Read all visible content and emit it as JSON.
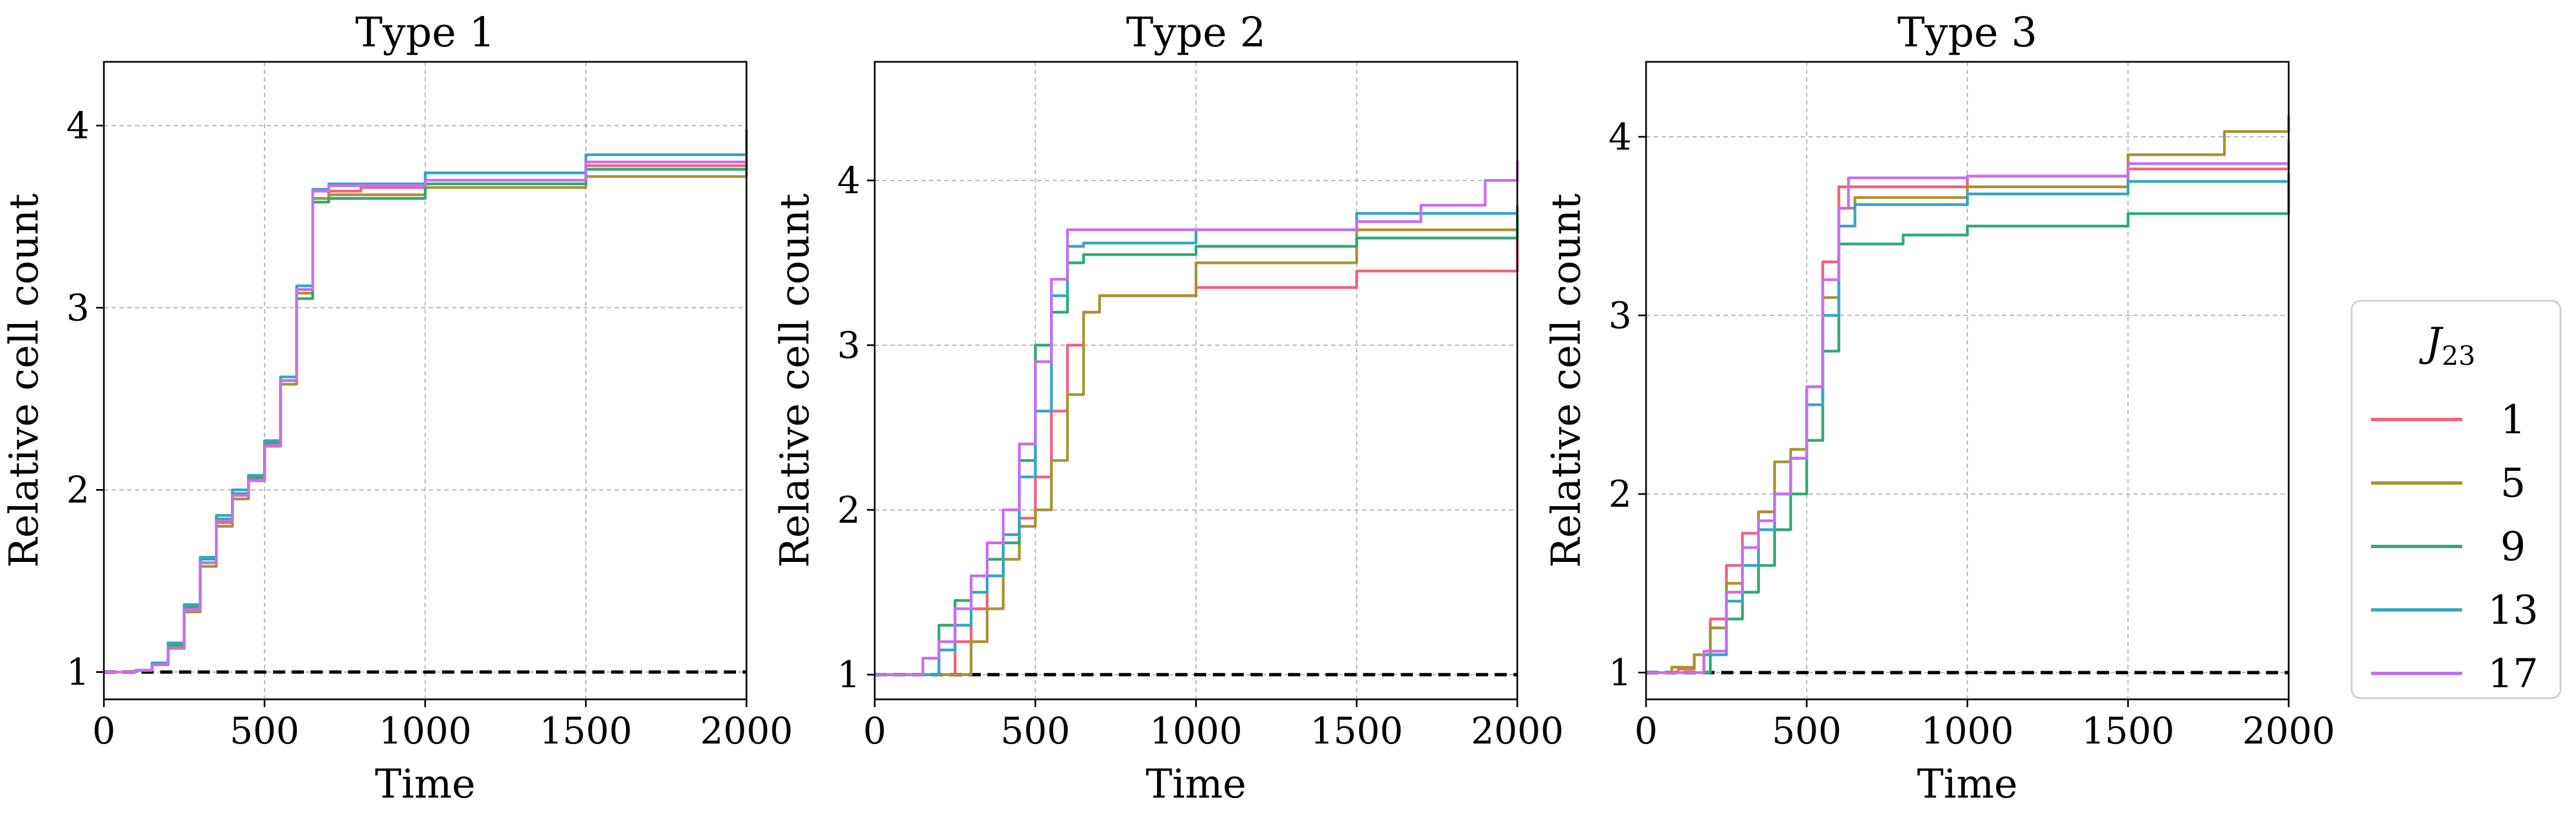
{
  "chart_data": [
    {
      "type": "line",
      "title": "Type 1",
      "xlabel": "Time",
      "ylabel": "Relative cell count",
      "xlim": [
        0,
        2000
      ],
      "ylim": [
        0.85,
        4.35
      ],
      "xticks": [
        0,
        500,
        1000,
        1500,
        2000
      ],
      "yticks": [
        1,
        2,
        3,
        4
      ],
      "grid": true,
      "reference_line": 1,
      "series": [
        {
          "name": "1",
          "color": "#f2627b",
          "points": [
            [
              0,
              1.0
            ],
            [
              100,
              1.01
            ],
            [
              150,
              1.05
            ],
            [
              200,
              1.15
            ],
            [
              250,
              1.35
            ],
            [
              300,
              1.6
            ],
            [
              350,
              1.82
            ],
            [
              400,
              1.97
            ],
            [
              450,
              2.06
            ],
            [
              500,
              2.25
            ],
            [
              550,
              2.6
            ],
            [
              600,
              3.1
            ],
            [
              650,
              3.6
            ],
            [
              700,
              3.64
            ],
            [
              800,
              3.66
            ],
            [
              1000,
              3.7
            ],
            [
              1500,
              3.78
            ],
            [
              2000,
              3.92
            ]
          ]
        },
        {
          "name": "5",
          "color": "#a89332",
          "points": [
            [
              0,
              1.0
            ],
            [
              100,
              1.01
            ],
            [
              150,
              1.04
            ],
            [
              200,
              1.14
            ],
            [
              250,
              1.33
            ],
            [
              300,
              1.58
            ],
            [
              350,
              1.8
            ],
            [
              400,
              1.95
            ],
            [
              450,
              2.05
            ],
            [
              500,
              2.24
            ],
            [
              550,
              2.58
            ],
            [
              600,
              3.08
            ],
            [
              650,
              3.6
            ],
            [
              700,
              3.62
            ],
            [
              1000,
              3.66
            ],
            [
              1500,
              3.72
            ],
            [
              2000,
              3.83
            ]
          ]
        },
        {
          "name": "9",
          "color": "#2eab72",
          "points": [
            [
              0,
              1.0
            ],
            [
              100,
              1.01
            ],
            [
              150,
              1.05
            ],
            [
              200,
              1.15
            ],
            [
              250,
              1.36
            ],
            [
              300,
              1.62
            ],
            [
              350,
              1.84
            ],
            [
              400,
              1.98
            ],
            [
              450,
              2.07
            ],
            [
              500,
              2.26
            ],
            [
              550,
              2.6
            ],
            [
              600,
              3.05
            ],
            [
              650,
              3.58
            ],
            [
              700,
              3.6
            ],
            [
              1000,
              3.68
            ],
            [
              1500,
              3.76
            ],
            [
              2000,
              3.86
            ]
          ]
        },
        {
          "name": "13",
          "color": "#34a6c6",
          "points": [
            [
              0,
              1.0
            ],
            [
              100,
              1.01
            ],
            [
              150,
              1.05
            ],
            [
              200,
              1.16
            ],
            [
              250,
              1.37
            ],
            [
              300,
              1.63
            ],
            [
              350,
              1.86
            ],
            [
              400,
              2.0
            ],
            [
              450,
              2.08
            ],
            [
              500,
              2.27
            ],
            [
              550,
              2.62
            ],
            [
              600,
              3.12
            ],
            [
              650,
              3.65
            ],
            [
              700,
              3.68
            ],
            [
              1000,
              3.74
            ],
            [
              1500,
              3.84
            ],
            [
              2000,
              3.98
            ]
          ]
        },
        {
          "name": "17",
          "color": "#c76ff0",
          "points": [
            [
              0,
              1.0
            ],
            [
              100,
              1.01
            ],
            [
              150,
              1.04
            ],
            [
              200,
              1.13
            ],
            [
              250,
              1.34
            ],
            [
              300,
              1.6
            ],
            [
              350,
              1.83
            ],
            [
              400,
              1.97
            ],
            [
              450,
              2.05
            ],
            [
              500,
              2.24
            ],
            [
              550,
              2.6
            ],
            [
              600,
              3.1
            ],
            [
              650,
              3.64
            ],
            [
              700,
              3.67
            ],
            [
              1000,
              3.7
            ],
            [
              1500,
              3.8
            ],
            [
              2000,
              3.88
            ]
          ]
        }
      ]
    },
    {
      "type": "line",
      "title": "Type 2",
      "xlabel": "Time",
      "ylabel": "Relative cell count",
      "xlim": [
        0,
        2000
      ],
      "ylim": [
        0.85,
        4.72
      ],
      "xticks": [
        0,
        500,
        1000,
        1500,
        2000
      ],
      "yticks": [
        1,
        2,
        3,
        4
      ],
      "grid": true,
      "reference_line": 1,
      "series": [
        {
          "name": "1",
          "color": "#f2627b",
          "points": [
            [
              0,
              1.0
            ],
            [
              200,
              1.0
            ],
            [
              250,
              1.2
            ],
            [
              300,
              1.4
            ],
            [
              350,
              1.6
            ],
            [
              400,
              1.8
            ],
            [
              450,
              1.95
            ],
            [
              500,
              2.2
            ],
            [
              550,
              2.6
            ],
            [
              600,
              3.0
            ],
            [
              650,
              3.2
            ],
            [
              700,
              3.3
            ],
            [
              1000,
              3.35
            ],
            [
              1500,
              3.45
            ],
            [
              2000,
              3.72
            ]
          ]
        },
        {
          "name": "5",
          "color": "#a89332",
          "points": [
            [
              0,
              1.0
            ],
            [
              230,
              1.0
            ],
            [
              300,
              1.2
            ],
            [
              350,
              1.4
            ],
            [
              400,
              1.7
            ],
            [
              450,
              1.9
            ],
            [
              500,
              2.0
            ],
            [
              550,
              2.3
            ],
            [
              600,
              2.7
            ],
            [
              650,
              3.2
            ],
            [
              700,
              3.3
            ],
            [
              1000,
              3.5
            ],
            [
              1500,
              3.7
            ],
            [
              2000,
              3.85
            ]
          ]
        },
        {
          "name": "9",
          "color": "#2eab72",
          "points": [
            [
              0,
              1.0
            ],
            [
              150,
              1.0
            ],
            [
              200,
              1.3
            ],
            [
              250,
              1.45
            ],
            [
              300,
              1.5
            ],
            [
              350,
              1.7
            ],
            [
              400,
              1.8
            ],
            [
              450,
              2.3
            ],
            [
              500,
              3.0
            ],
            [
              550,
              3.2
            ],
            [
              600,
              3.5
            ],
            [
              650,
              3.55
            ],
            [
              1000,
              3.6
            ],
            [
              1500,
              3.65
            ],
            [
              2000,
              3.78
            ]
          ]
        },
        {
          "name": "13",
          "color": "#34a6c6",
          "points": [
            [
              0,
              1.0
            ],
            [
              150,
              1.0
            ],
            [
              200,
              1.15
            ],
            [
              250,
              1.3
            ],
            [
              300,
              1.5
            ],
            [
              350,
              1.6
            ],
            [
              400,
              1.85
            ],
            [
              450,
              2.2
            ],
            [
              500,
              2.6
            ],
            [
              550,
              3.3
            ],
            [
              600,
              3.6
            ],
            [
              650,
              3.62
            ],
            [
              1000,
              3.7
            ],
            [
              1500,
              3.8
            ],
            [
              2000,
              3.82
            ]
          ]
        },
        {
          "name": "17",
          "color": "#c76ff0",
          "points": [
            [
              0,
              1.0
            ],
            [
              100,
              1.0
            ],
            [
              150,
              1.1
            ],
            [
              200,
              1.2
            ],
            [
              250,
              1.4
            ],
            [
              300,
              1.6
            ],
            [
              350,
              1.8
            ],
            [
              400,
              2.0
            ],
            [
              450,
              2.4
            ],
            [
              500,
              2.9
            ],
            [
              550,
              3.4
            ],
            [
              600,
              3.7
            ],
            [
              1000,
              3.7
            ],
            [
              1500,
              3.75
            ],
            [
              1700,
              3.85
            ],
            [
              1900,
              4.0
            ],
            [
              2000,
              4.12
            ]
          ]
        }
      ]
    },
    {
      "type": "line",
      "title": "Type 3",
      "xlabel": "Time",
      "ylabel": "Relative cell count",
      "xlim": [
        0,
        2000
      ],
      "ylim": [
        0.85,
        4.42
      ],
      "xticks": [
        0,
        500,
        1000,
        1500,
        2000
      ],
      "yticks": [
        1,
        2,
        3,
        4
      ],
      "grid": true,
      "reference_line": 1,
      "series": [
        {
          "name": "1",
          "color": "#f2627b",
          "points": [
            [
              0,
              1.0
            ],
            [
              100,
              1.02
            ],
            [
              150,
              1.1
            ],
            [
              200,
              1.3
            ],
            [
              250,
              1.6
            ],
            [
              300,
              1.78
            ],
            [
              350,
              1.9
            ],
            [
              400,
              2.0
            ],
            [
              450,
              2.2
            ],
            [
              500,
              2.6
            ],
            [
              550,
              3.3
            ],
            [
              600,
              3.72
            ],
            [
              1000,
              3.78
            ],
            [
              1500,
              3.82
            ],
            [
              2000,
              3.88
            ]
          ]
        },
        {
          "name": "5",
          "color": "#a89332",
          "points": [
            [
              0,
              1.0
            ],
            [
              80,
              1.03
            ],
            [
              150,
              1.1
            ],
            [
              200,
              1.25
            ],
            [
              250,
              1.5
            ],
            [
              300,
              1.7
            ],
            [
              350,
              1.9
            ],
            [
              400,
              2.18
            ],
            [
              450,
              2.25
            ],
            [
              500,
              2.6
            ],
            [
              550,
              3.1
            ],
            [
              600,
              3.6
            ],
            [
              650,
              3.66
            ],
            [
              1000,
              3.72
            ],
            [
              1500,
              3.9
            ],
            [
              1800,
              4.03
            ],
            [
              2000,
              4.12
            ]
          ]
        },
        {
          "name": "9",
          "color": "#2eab72",
          "points": [
            [
              0,
              1.0
            ],
            [
              150,
              1.0
            ],
            [
              200,
              1.1
            ],
            [
              250,
              1.3
            ],
            [
              300,
              1.45
            ],
            [
              350,
              1.6
            ],
            [
              400,
              1.8
            ],
            [
              450,
              2.0
            ],
            [
              500,
              2.3
            ],
            [
              550,
              2.8
            ],
            [
              600,
              3.4
            ],
            [
              800,
              3.45
            ],
            [
              1000,
              3.5
            ],
            [
              1500,
              3.57
            ],
            [
              2000,
              3.75
            ]
          ]
        },
        {
          "name": "13",
          "color": "#34a6c6",
          "points": [
            [
              0,
              1.0
            ],
            [
              120,
              1.0
            ],
            [
              180,
              1.1
            ],
            [
              250,
              1.4
            ],
            [
              300,
              1.6
            ],
            [
              350,
              1.8
            ],
            [
              400,
              2.0
            ],
            [
              450,
              2.2
            ],
            [
              500,
              2.5
            ],
            [
              550,
              3.0
            ],
            [
              600,
              3.5
            ],
            [
              650,
              3.62
            ],
            [
              1000,
              3.68
            ],
            [
              1500,
              3.75
            ],
            [
              2000,
              3.8
            ]
          ]
        },
        {
          "name": "17",
          "color": "#c76ff0",
          "points": [
            [
              0,
              1.0
            ],
            [
              120,
              1.0
            ],
            [
              180,
              1.12
            ],
            [
              250,
              1.45
            ],
            [
              300,
              1.7
            ],
            [
              350,
              1.85
            ],
            [
              400,
              2.0
            ],
            [
              450,
              2.2
            ],
            [
              500,
              2.6
            ],
            [
              550,
              3.2
            ],
            [
              600,
              3.6
            ],
            [
              630,
              3.77
            ],
            [
              1000,
              3.78
            ],
            [
              1500,
              3.85
            ],
            [
              2000,
              3.98
            ]
          ]
        }
      ]
    }
  ],
  "legend": {
    "title": "J",
    "title_subscript": "23",
    "placement": "right",
    "items": [
      {
        "label": "1",
        "color": "#f2627b"
      },
      {
        "label": "5",
        "color": "#a89332"
      },
      {
        "label": "9",
        "color": "#2eab72"
      },
      {
        "label": "13",
        "color": "#34a6c6"
      },
      {
        "label": "17",
        "color": "#c76ff0"
      }
    ]
  }
}
